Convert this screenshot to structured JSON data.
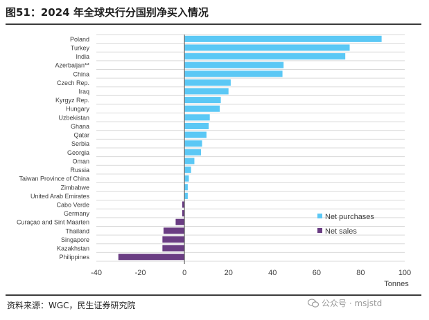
{
  "figure": {
    "title": "图51：2024 年全球央行分国别净买入情况",
    "source": "资料来源：WGC，民生证券研究院",
    "watermark": "公众号 · msjstd"
  },
  "colors": {
    "purchase": "#5bc8f5",
    "sale": "#6a3d83",
    "axis": "#555555",
    "grid": "#d9d9d9",
    "text": "#3c3c3c"
  },
  "chart_data": {
    "type": "bar",
    "orientation": "horizontal",
    "categories": [
      "Poland",
      "Turkey",
      "India",
      "Azerbaijan**",
      "China",
      "Czech Rep.",
      "Iraq",
      "Kyrgyz Rep.",
      "Hungary",
      "Uzbekistan",
      "Ghana",
      "Qatar",
      "Serbia",
      "Georgia",
      "Oman",
      "Russia",
      "Taiwan Province of China",
      "Zimbabwe",
      "United Arab Emirates",
      "Cabo Verde",
      "Germany",
      "Curaçao and Sint Maarten",
      "Thailand",
      "Singapore",
      "Kazakhstan",
      "Philippines"
    ],
    "values": [
      89.5,
      75,
      73,
      45,
      44.5,
      21,
      20,
      16.5,
      16,
      11.5,
      11,
      10,
      8,
      7.5,
      4.5,
      3,
      2,
      1.5,
      1.5,
      -1,
      -1,
      -4,
      -9.5,
      -10,
      -10,
      -30
    ],
    "series": [
      {
        "name": "Net purchases",
        "sign": "positive"
      },
      {
        "name": "Net sales",
        "sign": "negative"
      }
    ],
    "xlim": [
      -40,
      100
    ],
    "xticks": [
      -40,
      -20,
      0,
      20,
      40,
      60,
      80,
      100
    ],
    "xlabel": "Tonnes",
    "legend_position": "lower-right",
    "grid": true
  }
}
